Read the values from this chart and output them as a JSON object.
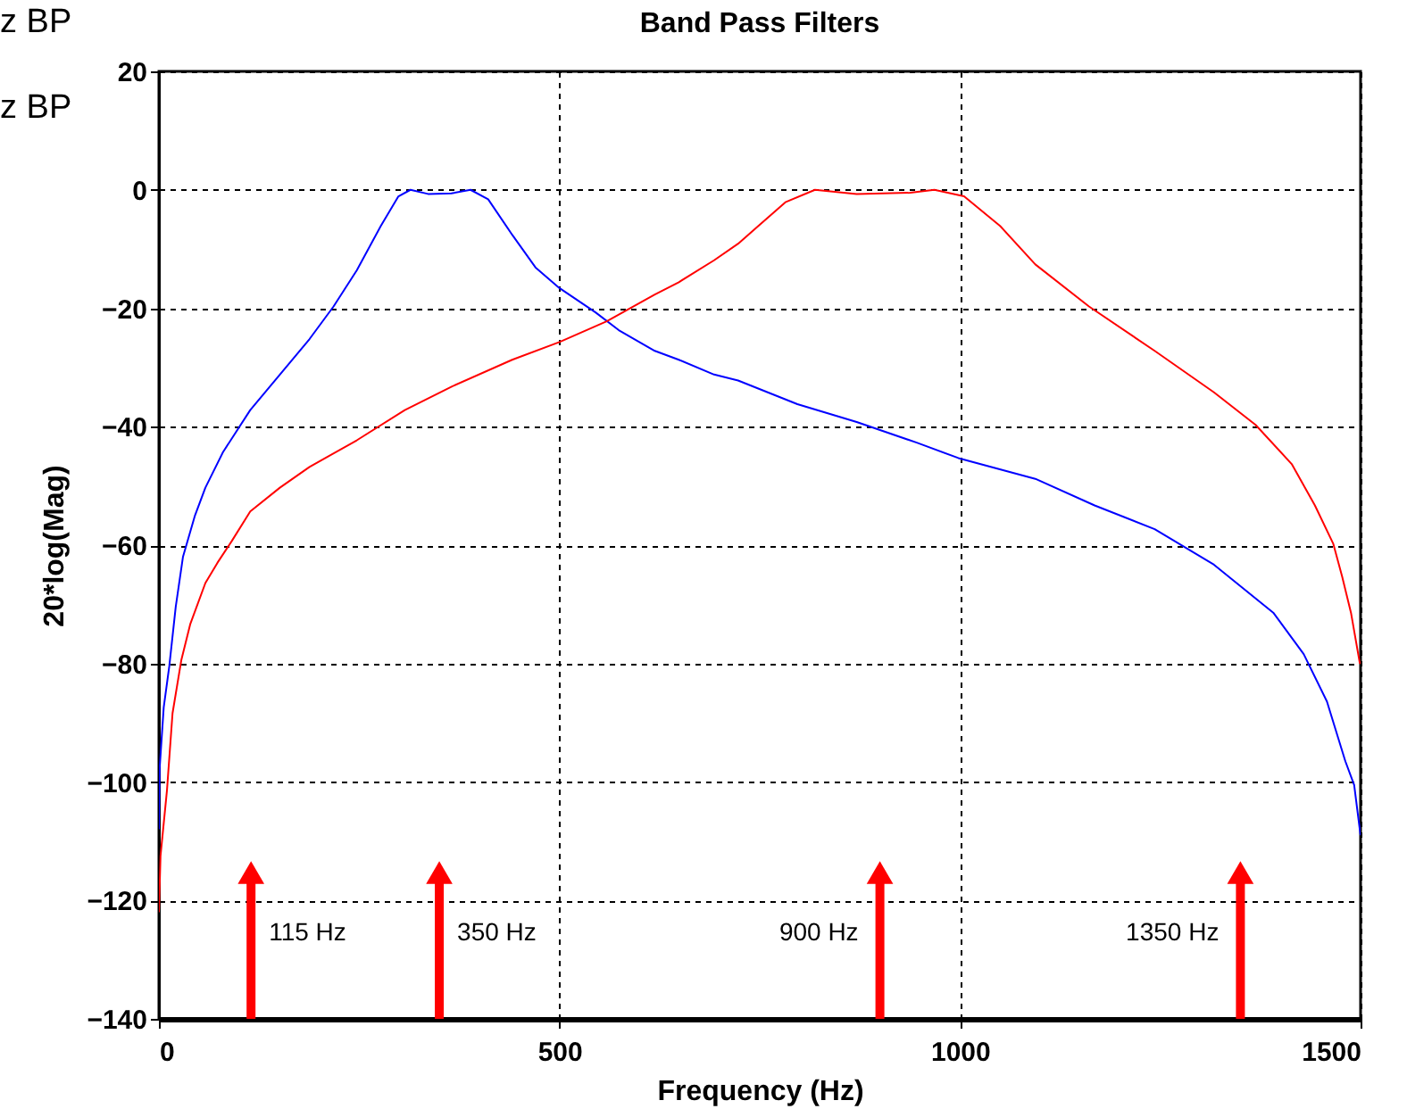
{
  "chart_data": {
    "type": "line",
    "title": "Band Pass Filters",
    "xlabel": "Frequency (Hz)",
    "ylabel": "20*log(Mag)",
    "xlim": [
      0,
      1500
    ],
    "xticks": [
      0,
      500,
      1000,
      1500
    ],
    "ylim": [
      -140,
      20
    ],
    "yticks": [
      -140,
      -120,
      -100,
      -80,
      -60,
      -40,
      -20,
      0,
      20
    ],
    "grid": true,
    "marker": "none",
    "line_style": "solid",
    "series": [
      {
        "color": "#0000ff",
        "x": [
          0,
          1,
          6,
          13,
          21,
          30,
          45,
          58,
          80,
          114,
          151,
          188,
          218,
          247,
          277,
          299,
          314,
          336,
          365,
          389,
          411,
          441,
          470,
          500,
          545,
          574,
          619,
          649,
          693,
          723,
          797,
          871,
          946,
          998,
          1094,
          1168,
          1243,
          1317,
          1391,
          1429,
          1458,
          1481,
          1492,
          1499,
          1500
        ],
        "values": [
          -108,
          -97.5,
          -87.4,
          -80.4,
          -70.4,
          -62,
          -55,
          -50.3,
          -44.3,
          -37.2,
          -31.2,
          -25.2,
          -19.7,
          -13.6,
          -6.1,
          -1.1,
          0,
          -0.7,
          -0.6,
          0,
          -1.6,
          -7.6,
          -13.1,
          -16.6,
          -20.7,
          -23.7,
          -27.2,
          -28.7,
          -31.2,
          -32.2,
          -36.2,
          -39.2,
          -42.7,
          -45.3,
          -48.8,
          -53.3,
          -57.3,
          -63.3,
          -71.4,
          -78.4,
          -86.4,
          -96.5,
          -100.5,
          -108,
          -109
        ]
      },
      {
        "color": "#ff0000",
        "x": [
          0,
          2,
          10,
          17,
          28,
          39,
          58,
          73,
          91,
          114,
          151,
          188,
          247,
          307,
          366,
          441,
          500,
          559,
          619,
          649,
          693,
          723,
          782,
          819,
          871,
          938,
          968,
          1005,
          1050,
          1094,
          1161,
          1243,
          1317,
          1369,
          1414,
          1443,
          1466,
          1477,
          1488,
          1499,
          1500
        ],
        "values": [
          -122,
          -112.5,
          -101.5,
          -88.4,
          -79.4,
          -73.4,
          -66.4,
          -63,
          -59.3,
          -54.3,
          -50.3,
          -46.8,
          -42.3,
          -37.2,
          -33.2,
          -28.7,
          -25.7,
          -22.2,
          -17.7,
          -15.6,
          -11.9,
          -9.1,
          -2.1,
          0,
          -0.7,
          -0.5,
          0,
          -1.1,
          -6.1,
          -12.6,
          -19.7,
          -27.2,
          -34.2,
          -39.7,
          -46.3,
          -53.3,
          -59.8,
          -65.3,
          -71.4,
          -79.9,
          -80
        ]
      }
    ],
    "ref_lines": [
      {
        "axis": "x",
        "value": 115,
        "label": "115 Hz",
        "color": "#ff0000"
      },
      {
        "axis": "x",
        "value": 350,
        "label": "350 Hz",
        "color": "#ff0000"
      },
      {
        "axis": "x",
        "value": 900,
        "label": "900 Hz",
        "color": "#ff0000"
      },
      {
        "axis": "x",
        "value": 1350,
        "label": "1350 Hz",
        "color": "#ff0000"
      }
    ],
    "annotations": [
      "z BP",
      "z BP"
    ]
  }
}
